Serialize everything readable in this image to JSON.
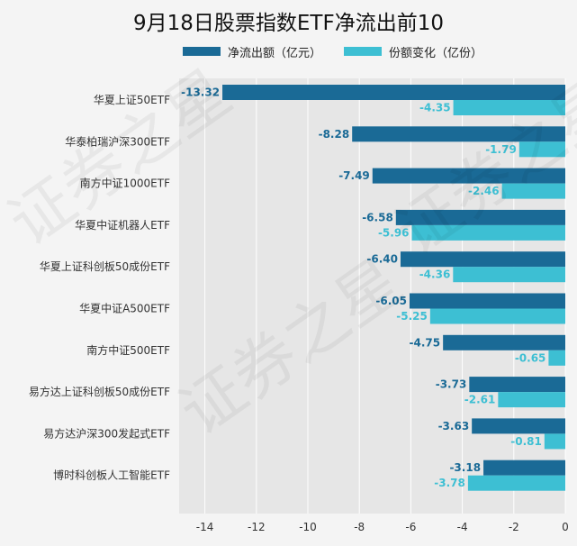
{
  "chart_data": {
    "type": "bar",
    "orientation": "horizontal",
    "title": "9月18日股票指数ETF净流出前10",
    "categories": [
      "华夏上证50ETF",
      "华泰柏瑞沪深300ETF",
      "南方中证1000ETF",
      "华夏中证机器人ETF",
      "华夏上证科创板50成份ETF",
      "华夏中证A500ETF",
      "南方中证500ETF",
      "易方达上证科创板50成份ETF",
      "易方达沪深300发起式ETF",
      "博时科创板人工智能ETF"
    ],
    "series": [
      {
        "name": "净流出额（亿元）",
        "color": "#1a6a96",
        "values": [
          -13.32,
          -8.28,
          -7.49,
          -6.58,
          -6.4,
          -6.05,
          -4.75,
          -3.73,
          -3.63,
          -3.18
        ],
        "labels": [
          "-13.32",
          "-8.28",
          "-7.49",
          "-6.58",
          "-6.40",
          "-6.05",
          "-4.75",
          "-3.73",
          "-3.63",
          "-3.18"
        ]
      },
      {
        "name": "份额变化（亿份）",
        "color": "#3dbfd3",
        "values": [
          -4.35,
          -1.79,
          -2.46,
          -5.96,
          -4.36,
          -5.25,
          -0.65,
          -2.61,
          -0.81,
          -3.78
        ],
        "labels": [
          "-4.35",
          "-1.79",
          "-2.46",
          "-5.96",
          "-4.36",
          "-5.25",
          "-0.65",
          "-2.61",
          "-0.81",
          "-3.78"
        ]
      }
    ],
    "xlim": [
      -15,
      0
    ],
    "xticks": [
      -14,
      -12,
      -10,
      -8,
      -6,
      -4,
      -2,
      0
    ],
    "xtick_labels": [
      "-14",
      "-12",
      "-10",
      "-8",
      "-6",
      "-4",
      "-2",
      "0"
    ],
    "grid": true,
    "legend_position": "top"
  },
  "watermark_text": "证券之星"
}
